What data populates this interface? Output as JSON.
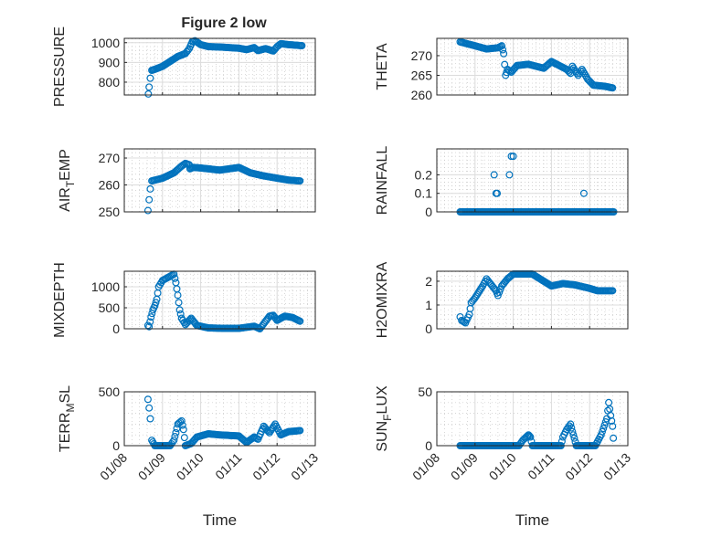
{
  "title": "Figure 2 low",
  "colors": {
    "marker": "#0072BD",
    "axis": "#262626",
    "grid": "#dcdcdc"
  },
  "chart_data": [
    {
      "type": "scatter",
      "ylabel": [
        "PRESSURE"
      ],
      "xlabel": "",
      "ylim": [
        735,
        1022
      ],
      "yticks": [
        800,
        900,
        1000
      ],
      "points": [
        [
          8.63,
          740
        ],
        [
          8.65,
          775
        ],
        [
          8.68,
          820
        ],
        [
          8.72,
          860
        ],
        [
          8.8,
          865
        ],
        [
          9.0,
          880
        ],
        [
          9.2,
          905
        ],
        [
          9.4,
          930
        ],
        [
          9.6,
          945
        ],
        [
          9.7,
          970
        ],
        [
          9.78,
          1005
        ],
        [
          9.85,
          1010
        ],
        [
          10.0,
          990
        ],
        [
          10.2,
          980
        ],
        [
          10.5,
          978
        ],
        [
          11.0,
          972
        ],
        [
          11.2,
          965
        ],
        [
          11.4,
          975
        ],
        [
          11.5,
          960
        ],
        [
          11.7,
          970
        ],
        [
          11.9,
          958
        ],
        [
          12.0,
          980
        ],
        [
          12.1,
          995
        ],
        [
          12.3,
          990
        ],
        [
          12.65,
          985
        ]
      ]
    },
    {
      "type": "scatter",
      "ylabel": [
        "THETA"
      ],
      "xlabel": "",
      "ylim": [
        260,
        274.4
      ],
      "yticks": [
        260,
        265,
        270
      ],
      "points": [
        [
          8.61,
          273.5
        ],
        [
          9.0,
          272.5
        ],
        [
          9.3,
          271.7
        ],
        [
          9.6,
          272.0
        ],
        [
          9.7,
          272.5
        ],
        [
          9.75,
          270.5
        ],
        [
          9.8,
          265.0
        ],
        [
          9.85,
          266.5
        ],
        [
          9.95,
          265.8
        ],
        [
          10.1,
          267.5
        ],
        [
          10.4,
          267.8
        ],
        [
          10.8,
          266.8
        ],
        [
          11.0,
          268.5
        ],
        [
          11.2,
          267.5
        ],
        [
          11.4,
          266.5
        ],
        [
          11.5,
          265.5
        ],
        [
          11.55,
          267.3
        ],
        [
          11.7,
          265.0
        ],
        [
          11.8,
          266.5
        ],
        [
          11.95,
          264.0
        ],
        [
          12.1,
          262.5
        ],
        [
          12.4,
          262.2
        ],
        [
          12.6,
          261.8
        ]
      ]
    },
    {
      "type": "scatter",
      "ylabel": [
        "AIR",
        "T",
        "EMP"
      ],
      "xlabel": "",
      "ylim": [
        250,
        273.4
      ],
      "yticks": [
        250,
        260,
        270
      ],
      "points": [
        [
          8.62,
          250.5
        ],
        [
          8.65,
          254.5
        ],
        [
          8.68,
          258.5
        ],
        [
          8.72,
          261.5
        ],
        [
          9.0,
          262.5
        ],
        [
          9.3,
          264.5
        ],
        [
          9.5,
          267
        ],
        [
          9.6,
          268
        ],
        [
          9.7,
          267.5
        ],
        [
          9.72,
          266
        ],
        [
          9.8,
          266.5
        ],
        [
          10.0,
          266.3
        ],
        [
          10.5,
          265.5
        ],
        [
          11.0,
          266.5
        ],
        [
          11.3,
          264.5
        ],
        [
          11.6,
          263.5
        ],
        [
          12.0,
          262.5
        ],
        [
          12.3,
          261.8
        ],
        [
          12.6,
          261.5
        ]
      ]
    },
    {
      "type": "scatter",
      "ylabel": [
        "RAINFALL"
      ],
      "xlabel": "",
      "ylim": [
        0,
        0.34
      ],
      "yticks": [
        0,
        0.1,
        0.2
      ],
      "baseline_range": [
        8.61,
        12.65
      ],
      "baseline_value": 0,
      "points": [
        [
          9.5,
          0.2
        ],
        [
          9.55,
          0.1
        ],
        [
          9.58,
          0.1
        ],
        [
          9.9,
          0.2
        ],
        [
          9.95,
          0.3
        ],
        [
          10.0,
          0.3
        ],
        [
          11.85,
          0.1
        ]
      ]
    },
    {
      "type": "scatter",
      "ylabel": [
        "MIXDEPTH"
      ],
      "xlabel": "",
      "ylim": [
        0,
        1370
      ],
      "yticks": [
        0,
        500,
        1000
      ],
      "points": [
        [
          8.62,
          80
        ],
        [
          8.65,
          50
        ],
        [
          8.7,
          280
        ],
        [
          8.75,
          450
        ],
        [
          8.8,
          550
        ],
        [
          8.85,
          700
        ],
        [
          8.9,
          1000
        ],
        [
          9.0,
          1150
        ],
        [
          9.1,
          1200
        ],
        [
          9.2,
          1250
        ],
        [
          9.3,
          1300
        ],
        [
          9.35,
          1100
        ],
        [
          9.4,
          800
        ],
        [
          9.45,
          450
        ],
        [
          9.5,
          250
        ],
        [
          9.6,
          100
        ],
        [
          9.75,
          250
        ],
        [
          9.9,
          80
        ],
        [
          10.2,
          20
        ],
        [
          10.6,
          10
        ],
        [
          11.0,
          10
        ],
        [
          11.4,
          60
        ],
        [
          11.55,
          0
        ],
        [
          11.8,
          300
        ],
        [
          11.9,
          320
        ],
        [
          12.0,
          200
        ],
        [
          12.2,
          300
        ],
        [
          12.4,
          270
        ],
        [
          12.6,
          180
        ]
      ]
    },
    {
      "type": "scatter",
      "ylabel": [
        "H2OMIXRA"
      ],
      "xlabel": "",
      "ylim": [
        0,
        2.42
      ],
      "yticks": [
        0,
        1,
        2
      ],
      "points": [
        [
          8.61,
          0.5
        ],
        [
          8.65,
          0.35
        ],
        [
          8.75,
          0.25
        ],
        [
          8.85,
          0.6
        ],
        [
          8.9,
          1.1
        ],
        [
          9.0,
          1.3
        ],
        [
          9.2,
          1.8
        ],
        [
          9.3,
          2.1
        ],
        [
          9.4,
          1.9
        ],
        [
          9.55,
          1.6
        ],
        [
          9.6,
          1.4
        ],
        [
          9.7,
          1.8
        ],
        [
          9.85,
          2.1
        ],
        [
          10.0,
          2.3
        ],
        [
          10.5,
          2.3
        ],
        [
          10.8,
          2.0
        ],
        [
          11.0,
          1.8
        ],
        [
          11.3,
          1.9
        ],
        [
          11.6,
          1.85
        ],
        [
          12.0,
          1.7
        ],
        [
          12.2,
          1.6
        ],
        [
          12.6,
          1.6
        ]
      ]
    },
    {
      "type": "scatter",
      "ylabel": [
        "TERR",
        "M",
        "SL"
      ],
      "xlabel": "Time",
      "ylim": [
        0,
        500
      ],
      "yticks": [
        0,
        500
      ],
      "points": [
        [
          8.62,
          430
        ],
        [
          8.65,
          350
        ],
        [
          8.68,
          250
        ],
        [
          8.72,
          50
        ],
        [
          8.8,
          0
        ],
        [
          9.2,
          0
        ],
        [
          9.3,
          50
        ],
        [
          9.35,
          120
        ],
        [
          9.4,
          200
        ],
        [
          9.5,
          230
        ],
        [
          9.55,
          150
        ],
        [
          9.6,
          0
        ],
        [
          9.75,
          20
        ],
        [
          9.9,
          80
        ],
        [
          10.2,
          110
        ],
        [
          10.5,
          100
        ],
        [
          11.0,
          90
        ],
        [
          11.2,
          30
        ],
        [
          11.4,
          80
        ],
        [
          11.5,
          60
        ],
        [
          11.65,
          180
        ],
        [
          11.8,
          120
        ],
        [
          11.95,
          200
        ],
        [
          12.1,
          100
        ],
        [
          12.3,
          130
        ],
        [
          12.6,
          140
        ]
      ]
    },
    {
      "type": "scatter",
      "ylabel": [
        "SUN",
        "F",
        "LUX"
      ],
      "xlabel": "Time",
      "ylim": [
        0,
        50
      ],
      "yticks": [
        0,
        50
      ],
      "points": [
        [
          8.61,
          0
        ],
        [
          10.15,
          0
        ],
        [
          10.25,
          5
        ],
        [
          10.4,
          10
        ],
        [
          10.45,
          8
        ],
        [
          10.5,
          0
        ],
        [
          11.25,
          0
        ],
        [
          11.3,
          8
        ],
        [
          11.4,
          15
        ],
        [
          11.5,
          20
        ],
        [
          11.55,
          13
        ],
        [
          11.6,
          7
        ],
        [
          11.65,
          0
        ],
        [
          12.15,
          0
        ],
        [
          12.3,
          10
        ],
        [
          12.45,
          25
        ],
        [
          12.5,
          40
        ],
        [
          12.55,
          28
        ],
        [
          12.6,
          18
        ],
        [
          12.62,
          7
        ]
      ]
    }
  ],
  "xaxis": {
    "xlim": [
      8,
      13
    ],
    "tick_values": [
      8,
      9,
      10,
      11,
      12,
      13
    ],
    "tick_labels": [
      "01/08",
      "01/09",
      "01/10",
      "01/11",
      "01/12",
      "01/13"
    ]
  }
}
